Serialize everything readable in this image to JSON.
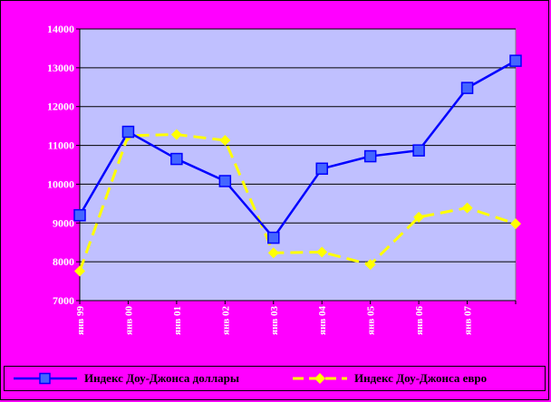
{
  "colors": {
    "background": "#ff00ff",
    "plot_area": "#c0c0ff",
    "series_usd": "#0000ff",
    "marker_usd_fill": "#4466ff",
    "series_eur": "#ffff00",
    "axis_text": "#ffffff"
  },
  "chart_data": {
    "type": "line",
    "title": "",
    "xlabel": "",
    "ylabel": "",
    "categories": [
      "янв 99",
      "янв 00",
      "янв 01",
      "янв 02",
      "янв 03",
      "янв 04",
      "янв 05",
      "янв 06",
      "янв 07",
      ""
    ],
    "ylim": [
      7000,
      14000
    ],
    "yticks": [
      "7000",
      "8000",
      "9000",
      "10000",
      "11000",
      "12000",
      "13000",
      "14000"
    ],
    "grid": true,
    "legend": "bottom",
    "series": [
      {
        "name": "Индекс Доу-Джонса доллары",
        "color": "#0000ff",
        "marker": "square",
        "values": [
          9200,
          11350,
          10650,
          10080,
          8620,
          10400,
          10720,
          10870,
          12480,
          13180
        ]
      },
      {
        "name": "Индекс Доу-Джонса евро",
        "color": "#ffff00",
        "marker": "diamond",
        "values": [
          7760,
          11250,
          11280,
          11130,
          8230,
          8250,
          7930,
          9150,
          9390,
          8980
        ]
      }
    ]
  }
}
